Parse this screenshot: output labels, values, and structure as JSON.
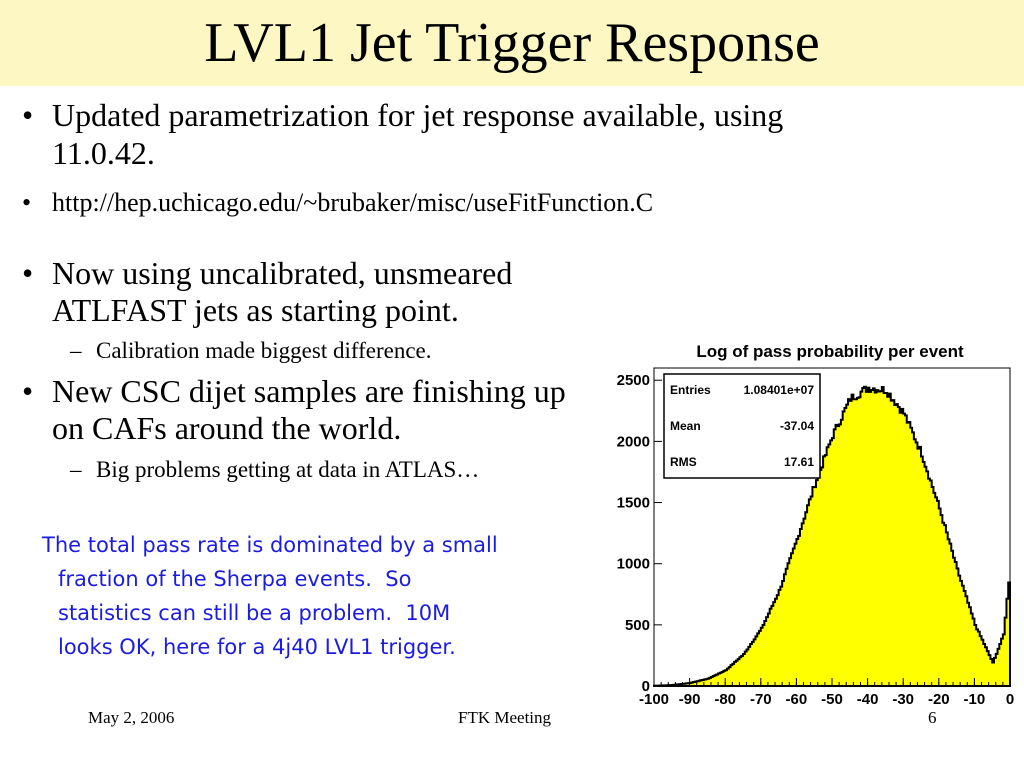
{
  "slide": {
    "title": "LVL1 Jet Trigger Response",
    "bullets": {
      "b1": "Updated parametrization for jet response available, using",
      "b1_line2": "11.0.42.",
      "url": "http://hep.uchicago.edu/~brubaker/misc/useFitFunction.C",
      "b2": "Now using uncalibrated, unsmeared",
      "b2_line2": "ATLFAST jets as starting point.",
      "b2_sub": "Calibration made biggest difference.",
      "b3": "New CSC dijet samples are finishing up",
      "b3_line2": "on CAFs around the world.",
      "b3_sub": "Big problems getting at data in ATLAS…"
    },
    "note_lines": [
      "The total pass rate is dominated by a small",
      "fraction of the Sherpa events.  So",
      "statistics can still be a problem.  10M",
      "looks OK, here for a 4j40 LVL1 trigger."
    ],
    "note_color": "#1c1ce0",
    "title_bg": "#fdf7c4",
    "footer": {
      "date": "May 2, 2006",
      "meeting": "FTK Meeting",
      "page": "6"
    }
  },
  "chart_data": {
    "type": "histogram",
    "title": "Log of pass probability per event",
    "xlim": [
      -100,
      0
    ],
    "ylim": [
      0,
      2600
    ],
    "x_ticks": [
      "-100",
      "-90",
      "-80",
      "-70",
      "-60",
      "-50",
      "-40",
      "-30",
      "-20",
      "-10",
      "0"
    ],
    "y_ticks": [
      "0",
      "500",
      "1000",
      "1500",
      "2000",
      "2500"
    ],
    "fill_color": "#ffff00",
    "line_color": "#000000",
    "stats": {
      "entries_label": "Entries",
      "entries": "1.08401e+07",
      "mean_label": "Mean",
      "mean": "-37.04",
      "rms_label": "RMS",
      "rms": "17.61"
    },
    "bins_x": [
      -100,
      -95,
      -90,
      -85,
      -80,
      -75,
      -70,
      -65,
      -60,
      -55,
      -50,
      -45,
      -40,
      -35,
      -30,
      -25,
      -20,
      -15,
      -10,
      -5,
      -2,
      0
    ],
    "bins_y": [
      2,
      8,
      25,
      60,
      130,
      260,
      470,
      780,
      1200,
      1650,
      2050,
      2350,
      2440,
      2420,
      2230,
      1900,
      1450,
      950,
      500,
      190,
      420,
      1000
    ]
  }
}
